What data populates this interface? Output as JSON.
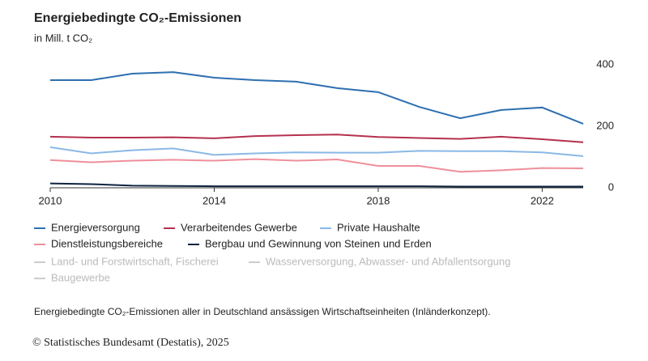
{
  "chart_data": {
    "type": "line",
    "title": "Energiebedingte CO₂-Emissionen",
    "subtitle": "in Mill. t CO₂",
    "x": [
      2010,
      2011,
      2012,
      2013,
      2014,
      2015,
      2016,
      2017,
      2018,
      2019,
      2020,
      2021,
      2022,
      2023
    ],
    "xlim": [
      2010,
      2023
    ],
    "xticks": [
      2010,
      2014,
      2018,
      2022
    ],
    "ylim": [
      0,
      400
    ],
    "yticks": [
      0,
      200,
      400
    ],
    "series": [
      {
        "name": "Energieversorgung",
        "color": "#2e6fb0",
        "values": [
          350,
          350,
          371,
          376,
          358,
          350,
          345,
          324,
          311,
          263,
          226,
          253,
          261,
          208
        ]
      },
      {
        "name": "Verarbeitendes Gewerbe",
        "color": "#b5304f",
        "values": [
          166,
          163,
          163,
          164,
          161,
          168,
          171,
          173,
          165,
          162,
          159,
          166,
          158,
          148
        ]
      },
      {
        "name": "Private Haushalte",
        "color": "#8ab8e6",
        "values": [
          132,
          112,
          122,
          128,
          107,
          112,
          115,
          114,
          114,
          120,
          119,
          119,
          115,
          103
        ]
      },
      {
        "name": "Dienstleistungsbereiche",
        "color": "#ef8f9b",
        "values": [
          90,
          83,
          88,
          91,
          88,
          93,
          88,
          92,
          71,
          71,
          52,
          57,
          64,
          63
        ]
      },
      {
        "name": "Bergbau und Gewinnung von Steinen und Erden",
        "color": "#0d2340",
        "values": [
          14,
          12,
          7,
          6,
          5,
          5,
          5,
          5,
          5,
          5,
          4,
          4,
          4,
          4
        ]
      }
    ],
    "legend_inactive": [
      "Land- und Forstwirtschaft, Fischerei",
      "Wasserversorgung, Abwasser- und Abfallentsorgung",
      "Baugewerbe"
    ],
    "inactive_color": "#cccccc",
    "grid": false,
    "footnote": "Energiebedingte CO₂-Emissionen aller in Deutschland ansässigen Wirtschaftseinheiten (Inländerkonzept).",
    "source": "© Statistisches Bundesamt (Destatis), 2025"
  }
}
